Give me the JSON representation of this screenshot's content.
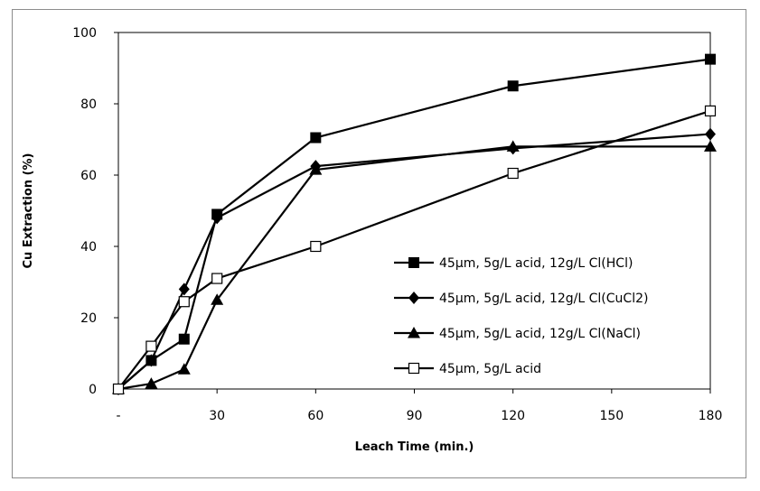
{
  "chart_data": {
    "type": "line",
    "title": "",
    "xlabel": "Leach Time (min.)",
    "ylabel": "Cu Extraction  (%)",
    "x_tick_labels": [
      "-",
      "30",
      "60",
      "90",
      "120",
      "150",
      "180"
    ],
    "x_tick_values": [
      0,
      30,
      60,
      90,
      120,
      150,
      180
    ],
    "y_tick_labels": [
      "0",
      "20",
      "40",
      "60",
      "80",
      "100"
    ],
    "xlim": [
      0,
      180
    ],
    "ylim": [
      0,
      100
    ],
    "grid": false,
    "legend_position": "bottom-right",
    "series": [
      {
        "name": "45μm, 5g/L acid, 12g/L Cl(HCl)",
        "marker": "filled-square",
        "x": [
          0,
          10,
          20,
          30,
          60,
          120,
          180
        ],
        "y": [
          0,
          8,
          14,
          49,
          70.5,
          85,
          92.5
        ]
      },
      {
        "name": "45μm, 5g/L acid, 12g/L Cl(CuCl2)",
        "marker": "filled-diamond",
        "x": [
          0,
          10,
          20,
          30,
          60,
          120,
          180
        ],
        "y": [
          0,
          8,
          28,
          48,
          62.5,
          67.5,
          71.5
        ]
      },
      {
        "name": "45μm, 5g/L acid, 12g/L Cl(NaCl)",
        "marker": "filled-triangle",
        "x": [
          0,
          10,
          20,
          30,
          60,
          120,
          180
        ],
        "y": [
          0,
          1.5,
          5.5,
          25,
          61.5,
          68,
          68
        ]
      },
      {
        "name": "45μm, 5g/L acid",
        "marker": "open-square",
        "x": [
          0,
          10,
          20,
          30,
          60,
          120,
          180
        ],
        "y": [
          0,
          12,
          24.5,
          31,
          40,
          60.5,
          78
        ]
      }
    ]
  }
}
